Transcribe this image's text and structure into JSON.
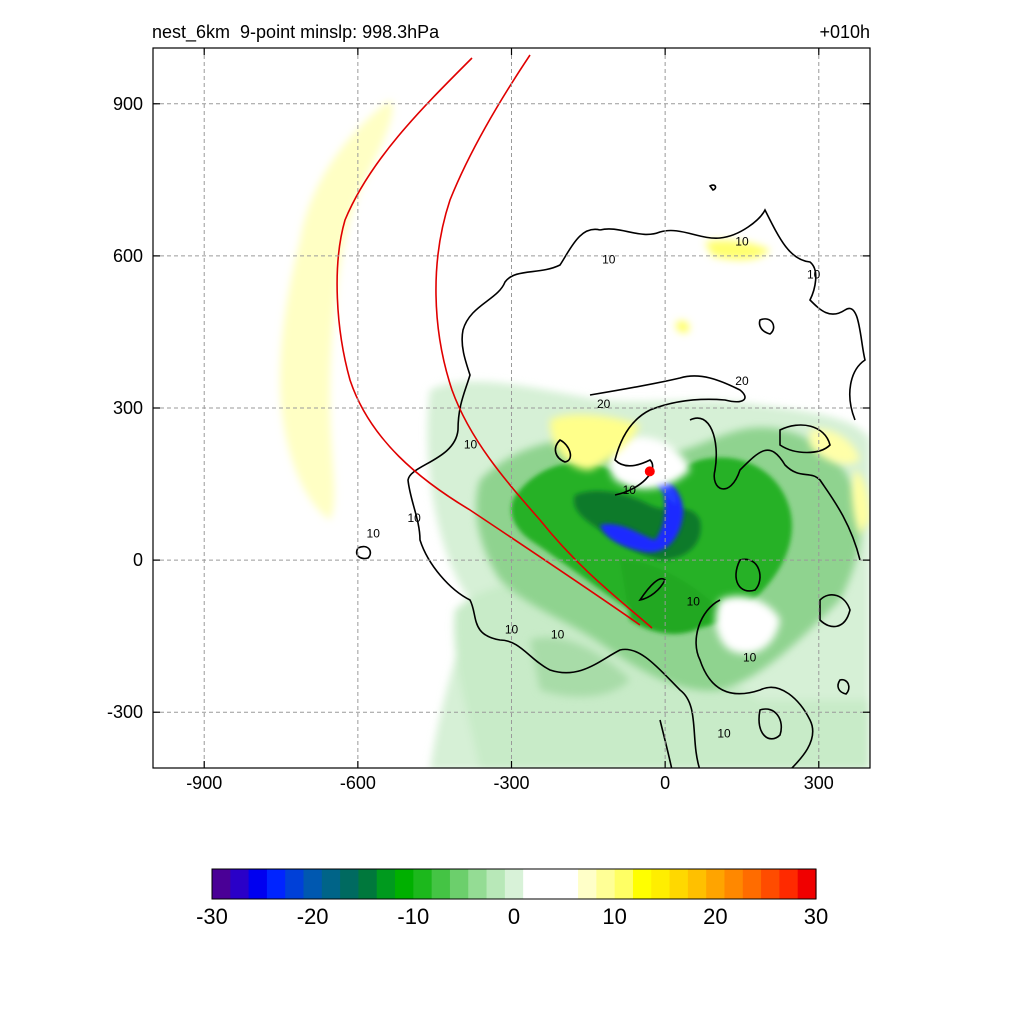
{
  "title": {
    "left": "nest_6km  9-point minslp: 998.3hPa",
    "right": "+010h"
  },
  "chart_data": {
    "type": "heatmap",
    "xlim": [
      -1000,
      400
    ],
    "ylim": [
      -410,
      1010
    ],
    "x_ticks": [
      -900,
      -600,
      -300,
      0,
      300
    ],
    "y_ticks": [
      900,
      600,
      300,
      0,
      -300
    ],
    "x_tick_labels": [
      "-900",
      "-600",
      "-300",
      "0",
      "300"
    ],
    "y_tick_labels": [
      "900",
      "600",
      "300",
      "0",
      "-300"
    ],
    "grid": true,
    "grid_style": "dashed",
    "contour_labels": [
      {
        "text": "10",
        "x": -70,
        "y": 130
      },
      {
        "text": "10",
        "x": -490,
        "y": 75
      },
      {
        "text": "10",
        "x": -380,
        "y": 220
      },
      {
        "text": "10",
        "x": -300,
        "y": -145
      },
      {
        "text": "10",
        "x": 55,
        "y": -90
      },
      {
        "text": "10",
        "x": 165,
        "y": -200
      },
      {
        "text": "10",
        "x": 115,
        "y": -350
      },
      {
        "text": "10",
        "x": -570,
        "y": 45
      },
      {
        "text": "10",
        "x": -210,
        "y": -155
      },
      {
        "text": "20",
        "x": -120,
        "y": 300
      },
      {
        "text": "20",
        "x": 150,
        "y": 345
      },
      {
        "text": "10",
        "x": 290,
        "y": 555
      },
      {
        "text": "10",
        "x": -110,
        "y": 585
      },
      {
        "text": "10",
        "x": 150,
        "y": 620
      }
    ],
    "storm_center": {
      "x": -30,
      "y": 175
    },
    "colorbar": {
      "min": -30,
      "max": 30,
      "ticks": [
        -30,
        -20,
        -10,
        0,
        10,
        20,
        30
      ],
      "tick_labels": [
        "-30",
        "-20",
        "-10",
        "0",
        "10",
        "20",
        "30"
      ],
      "colors": [
        "#4a0096",
        "#2a00c8",
        "#0000f0",
        "#0024ff",
        "#0040d8",
        "#0058b0",
        "#006488",
        "#006a60",
        "#00783c",
        "#009a1e",
        "#00b000",
        "#1cb81c",
        "#44c444",
        "#6ccf6c",
        "#94dc94",
        "#b8e8b8",
        "#d8f2d8",
        "#ffffff",
        "#ffffff",
        "#ffffff",
        "#ffffc8",
        "#ffff96",
        "#ffff64",
        "#ffff00",
        "#ffee00",
        "#ffd800",
        "#ffc000",
        "#ffa400",
        "#ff8800",
        "#ff6c00",
        "#ff4c00",
        "#ff2a00",
        "#f00000"
      ]
    }
  }
}
